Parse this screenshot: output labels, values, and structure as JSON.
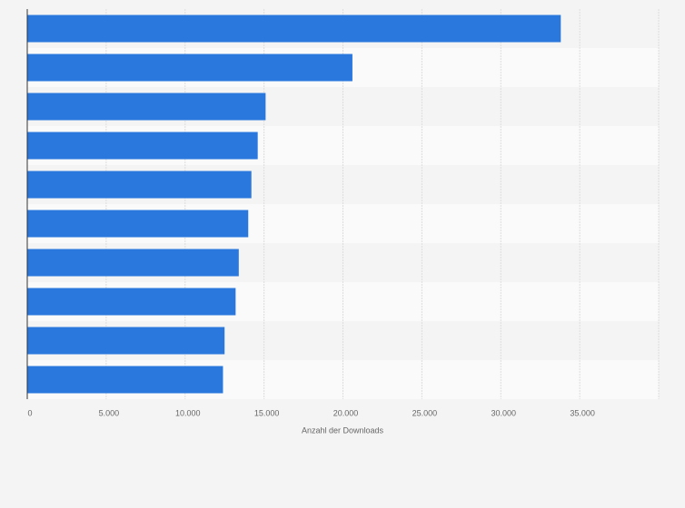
{
  "chart_data": {
    "type": "bar",
    "orientation": "horizontal",
    "categories": [
      null,
      null,
      null,
      null,
      null,
      null,
      null,
      null,
      null,
      null
    ],
    "values": [
      33800,
      20600,
      15100,
      14600,
      14200,
      14000,
      13400,
      13200,
      12500,
      12400
    ],
    "color": "#2a78de",
    "xlabel": "Anzahl der Downloads",
    "xlim": [
      0,
      40000
    ],
    "xticks": [
      0,
      {
        "value": 5000,
        "label": "5.000"
      },
      {
        "value": 10000,
        "label": "10.000"
      },
      {
        "value": 15000,
        "label": "15.000"
      },
      {
        "value": 20000,
        "label": "20.000"
      },
      {
        "value": 25000,
        "label": "25.000"
      },
      {
        "value": 30000,
        "label": "30.000"
      },
      {
        "value": 35000,
        "label": "35.000"
      }
    ],
    "grid": true
  }
}
